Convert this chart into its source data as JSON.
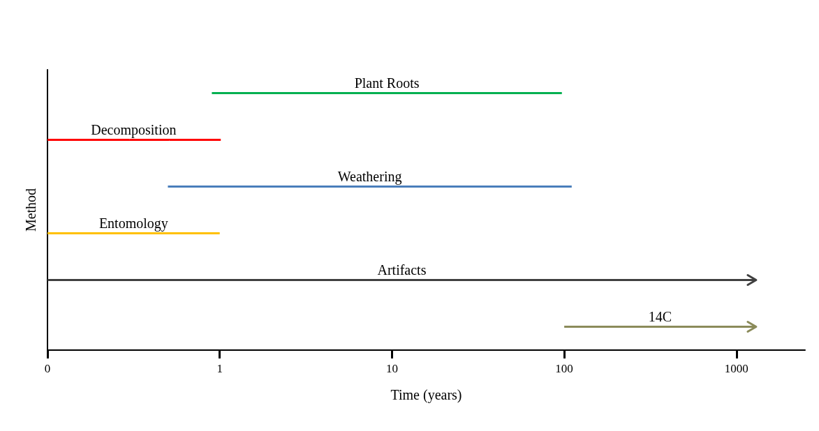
{
  "chart_data": {
    "type": "bar",
    "orientation": "horizontal",
    "xlabel": "Time (years)",
    "ylabel": "Method",
    "categories": [
      "Plant Roots",
      "Decomposition",
      "Weathering",
      "Entomology",
      "Artifacts",
      "14C"
    ],
    "series": [
      {
        "base": [
          0.9,
          0.1,
          0.5,
          0.1,
          0.1,
          100
        ],
        "values": [
          96,
          0.2,
          110,
          0.9,
          1300,
          1200
        ],
        "colors": [
          "#00b050",
          "#ff0000",
          "#4a7ebb",
          "#ffc000",
          "#404040",
          "#8b8b5a"
        ],
        "line_style": "solid"
      },
      {
        "base": [
          null,
          0.3,
          null,
          null,
          null,
          null
        ],
        "values": [
          null,
          0.7,
          null,
          null,
          null,
          null
        ],
        "color": "#ff0000",
        "line_style": "dashed"
      }
    ],
    "log": "x",
    "xlim": [
      0.1,
      2500
    ],
    "xticks": [
      {
        "value": 0.1,
        "label": "0"
      },
      1,
      10,
      100,
      1000
    ],
    "tick_labels": "x",
    "grid": false
  }
}
